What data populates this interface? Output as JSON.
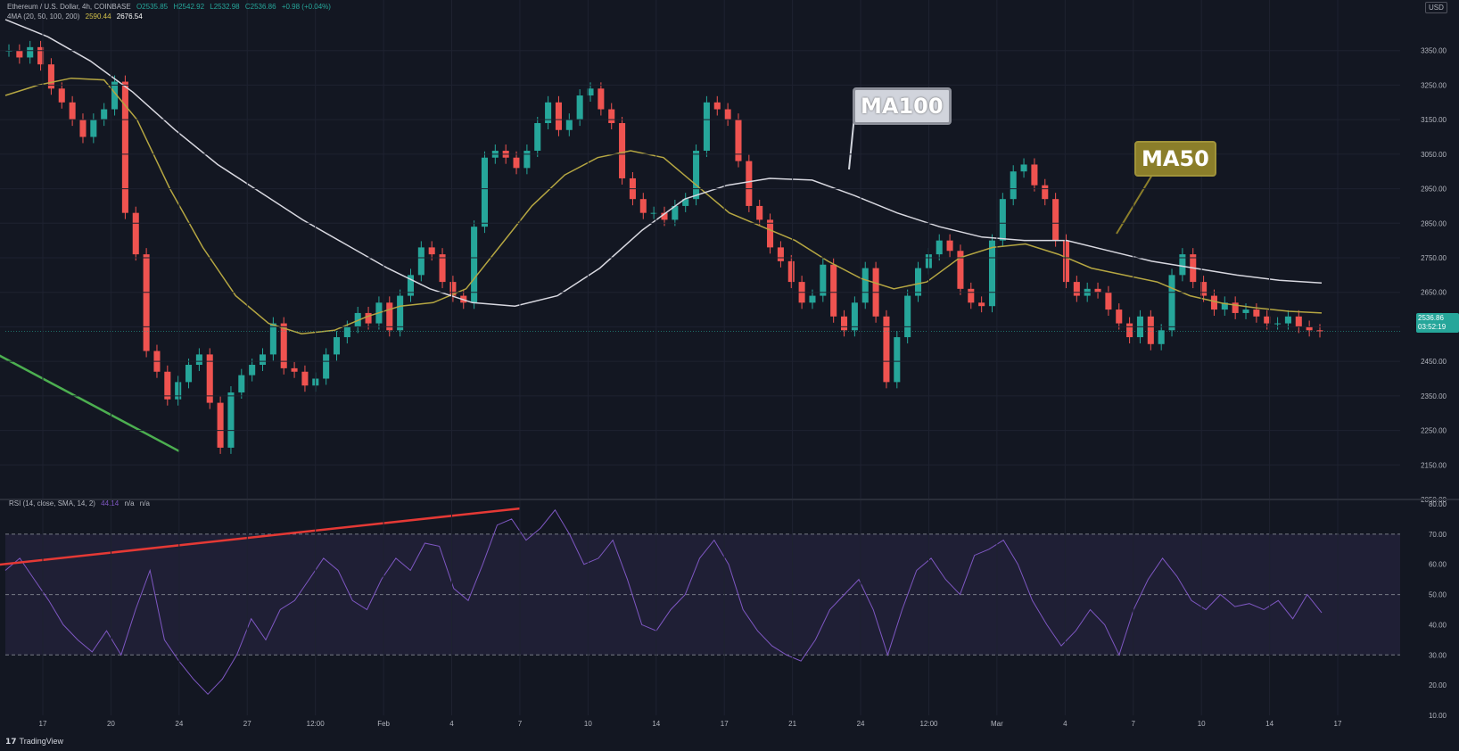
{
  "header": {
    "symbol": "Ethereum / U.S. Dollar, 4h, COINBASE",
    "open": "O2535.85",
    "high": "H2542.92",
    "low": "L2532.98",
    "close": "C2536.86",
    "change": "+0.98 (+0.04%)",
    "ma_indicator": "4MA (20, 50, 100, 200)",
    "ma50_value": "2590.44",
    "ma100_value": "2676.54"
  },
  "rsi_header": {
    "label": "RSI (14, close, SMA, 14, 2)",
    "value": "44.14",
    "na1": "n/a",
    "na2": "n/a"
  },
  "annotations": {
    "ma100": "MA100",
    "ma50": "MA50"
  },
  "price_tag": {
    "price": "2536.86",
    "countdown": "03:52:19"
  },
  "currency": "USD",
  "brand": "TradingView",
  "colors": {
    "up": "#26a69a",
    "down": "#ef5350",
    "ma50": "#b5a642",
    "ma100": "#d8d8e0",
    "support": "#4caf50",
    "rsi": "#7e57c2",
    "rsi_trend": "#e53935"
  },
  "chart_data": [
    {
      "type": "candlestick",
      "title": "Ethereum / U.S. Dollar, 4h, COINBASE",
      "ylim": [
        2050,
        3450
      ],
      "y_ticks": [
        3350,
        3250,
        3150,
        3050,
        2950,
        2850,
        2750,
        2650,
        2550,
        2450,
        2350,
        2250,
        2150,
        2050
      ],
      "x_tick_labels": [
        "17",
        "20",
        "24",
        "27",
        "12:00",
        "Feb",
        "4",
        "7",
        "10",
        "14",
        "17",
        "21",
        "24",
        "12:00",
        "Mar",
        "4",
        "7",
        "10",
        "14",
        "17"
      ],
      "series": [
        {
          "name": "price",
          "values": [
            3350,
            3330,
            3360,
            3310,
            3240,
            3200,
            3150,
            3100,
            3150,
            3180,
            3260,
            2880,
            2760,
            2480,
            2420,
            2340,
            2390,
            2440,
            2470,
            2330,
            2200,
            2360,
            2410,
            2440,
            2470,
            2560,
            2430,
            2420,
            2380,
            2400,
            2470,
            2520,
            2550,
            2590,
            2560,
            2620,
            2540,
            2640,
            2700,
            2780,
            2760,
            2680,
            2640,
            2620,
            2840,
            3040,
            3060,
            3040,
            3010,
            3060,
            3140,
            3200,
            3120,
            3150,
            3220,
            3240,
            3180,
            3140,
            2980,
            2920,
            2880,
            2880,
            2860,
            2900,
            2920,
            3060,
            3200,
            3180,
            3150,
            3030,
            2900,
            2860,
            2780,
            2740,
            2680,
            2620,
            2640,
            2730,
            2580,
            2540,
            2620,
            2720,
            2580,
            2390,
            2520,
            2640,
            2720,
            2760,
            2800,
            2770,
            2660,
            2620,
            2610,
            2800,
            2920,
            3000,
            3020,
            2960,
            2920,
            2800,
            2680,
            2640,
            2660,
            2650,
            2600,
            2560,
            2520,
            2580,
            2500,
            2540,
            2700,
            2760,
            2680,
            2640,
            2600,
            2620,
            2590,
            2600,
            2580,
            2560,
            2560,
            2580,
            2550,
            2540,
            2537
          ]
        },
        {
          "name": "MA50",
          "values": [
            3220,
            3250,
            3270,
            3265,
            3150,
            2950,
            2780,
            2640,
            2560,
            2530,
            2540,
            2580,
            2610,
            2620,
            2660,
            2780,
            2900,
            2990,
            3040,
            3060,
            3040,
            2960,
            2880,
            2840,
            2800,
            2740,
            2690,
            2660,
            2680,
            2750,
            2780,
            2790,
            2760,
            2720,
            2700,
            2680,
            2640,
            2618,
            2605,
            2595,
            2590
          ]
        },
        {
          "name": "MA100",
          "values": [
            3440,
            3390,
            3320,
            3230,
            3120,
            3020,
            2940,
            2860,
            2790,
            2720,
            2660,
            2620,
            2610,
            2640,
            2720,
            2830,
            2920,
            2960,
            2980,
            2975,
            2930,
            2880,
            2840,
            2810,
            2800,
            2800,
            2770,
            2740,
            2720,
            2700,
            2685,
            2677
          ]
        }
      ],
      "support_line": {
        "from": {
          "x": "24",
          "y": 2190
        },
        "to": {
          "x": "16",
          "y": 2505
        }
      }
    },
    {
      "type": "line",
      "title": "RSI (14, close, SMA, 14, 2)",
      "ylim": [
        10,
        80
      ],
      "y_ticks": [
        80,
        70,
        60,
        50,
        40,
        30,
        20,
        10
      ],
      "band": [
        30,
        70
      ],
      "series": [
        {
          "name": "RSI",
          "values": [
            58,
            62,
            55,
            48,
            40,
            35,
            31,
            38,
            30,
            45,
            58,
            35,
            28,
            22,
            17,
            22,
            30,
            42,
            35,
            45,
            48,
            55,
            62,
            58,
            48,
            45,
            55,
            62,
            58,
            67,
            66,
            52,
            48,
            60,
            73,
            75,
            68,
            72,
            78,
            70,
            60,
            62,
            68,
            55,
            40,
            38,
            45,
            50,
            62,
            68,
            60,
            45,
            38,
            33,
            30,
            28,
            35,
            45,
            50,
            55,
            45,
            30,
            45,
            58,
            62,
            55,
            50,
            63,
            65,
            68,
            60,
            48,
            40,
            33,
            38,
            45,
            40,
            30,
            45,
            55,
            62,
            56,
            48,
            45,
            50,
            46,
            47,
            45,
            48,
            42,
            50,
            44
          ]
        }
      ],
      "trend_line": {
        "from": {
          "x": "7",
          "y": 78.5
        },
        "to": {
          "x": "16",
          "y": 59
        }
      }
    }
  ]
}
